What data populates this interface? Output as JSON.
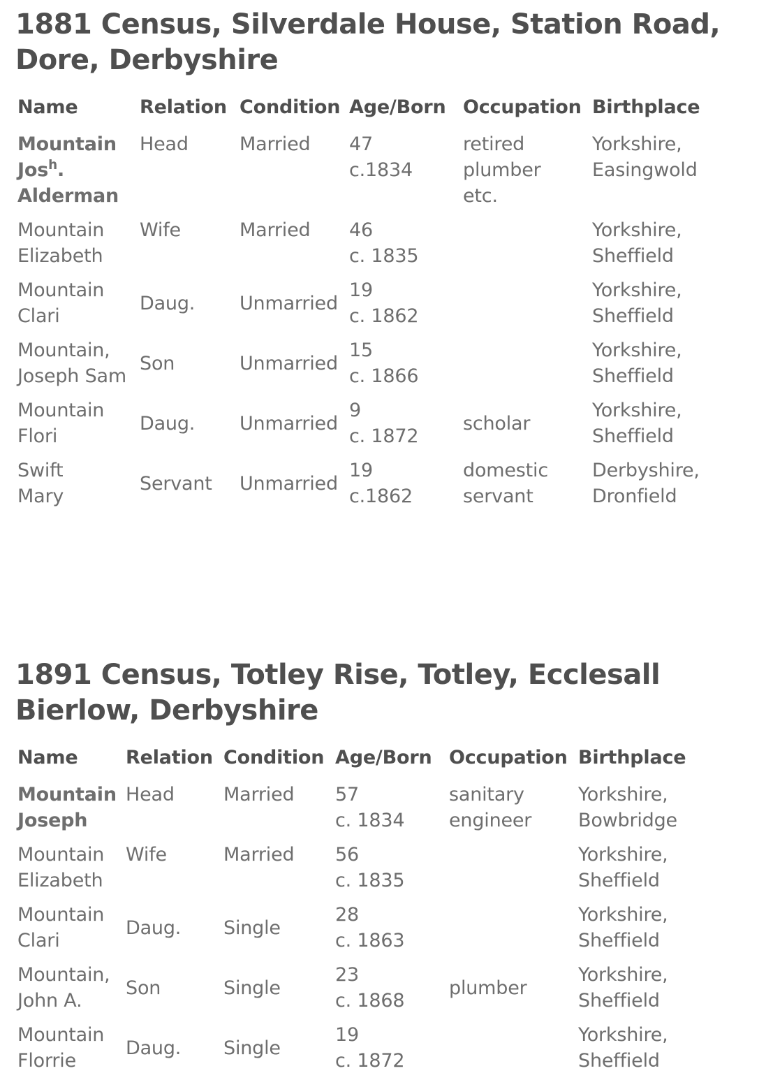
{
  "colors": {
    "background": "#ffffff",
    "title_text": "#4f4f4f",
    "header_text": "#4f4f4f",
    "body_text": "#6e6e6e",
    "bold_name_text": "#595959"
  },
  "census1881": {
    "title": "1881 Census, Silverdale House, Station Road,\nDore, Derbyshire",
    "columns": {
      "name": "Name",
      "relation": "Relation",
      "condition": "Condition",
      "age_born": "Age/Born",
      "occupation": "Occupation",
      "birthplace": "Birthplace"
    },
    "rows": [
      {
        "name_l1": "Mountain",
        "name_l2_base": "Jos",
        "name_l2_sup": "h",
        "name_l2_tail": ".",
        "name_l3": "Alderman",
        "relation": "Head",
        "condition": "Married",
        "age_born": "47\nc.1834",
        "occupation": "retired\nplumber\netc.",
        "birthplace": "Yorkshire,\nEasingwold"
      },
      {
        "name": "Mountain\nElizabeth",
        "relation": "Wife",
        "condition": "Married",
        "age_born": "46\nc. 1835",
        "occupation": "",
        "birthplace": "Yorkshire,\nSheffield"
      },
      {
        "name": "Mountain\nClari",
        "relation": "Daug.",
        "condition": "Unmarried",
        "age_born": "19\nc. 1862",
        "occupation": "",
        "birthplace": "Yorkshire,\nSheffield"
      },
      {
        "name": "Mountain,\nJoseph Sam",
        "relation": "Son",
        "condition": "Unmarried",
        "age_born": "15\nc. 1866",
        "occupation": "",
        "birthplace": "Yorkshire,\nSheffield"
      },
      {
        "name": "Mountain\nFlori",
        "relation": "Daug.",
        "condition": "Unmarried",
        "age_born": "9\nc. 1872",
        "occupation": "scholar",
        "birthplace": "Yorkshire,\nSheffield"
      },
      {
        "name": "Swift\nMary",
        "relation": "Servant",
        "condition": "Unmarried",
        "age_born": "19\nc.1862",
        "occupation": "domestic\nservant",
        "birthplace": "Derbyshire,\nDronfield"
      }
    ]
  },
  "census1891": {
    "title": "1891 Census, Totley Rise, Totley, Ecclesall\nBierlow, Derbyshire",
    "columns": {
      "name": "Name",
      "relation": "Relation",
      "condition": "Condition",
      "age_born": "Age/Born",
      "occupation": "Occupation",
      "birthplace": "Birthplace"
    },
    "rows": [
      {
        "name": "Mountain\nJoseph",
        "relation": "Head",
        "condition": "Married",
        "age_born": "57\nc. 1834",
        "occupation": "sanitary\nengineer",
        "birthplace": "Yorkshire,\nBowbridge"
      },
      {
        "name": "Mountain\nElizabeth",
        "relation": "Wife",
        "condition": "Married",
        "age_born": "56\nc. 1835",
        "occupation": "",
        "birthplace": "Yorkshire,\nSheffield"
      },
      {
        "name": "Mountain\nClari",
        "relation": "Daug.",
        "condition": "Single",
        "age_born": "28\nc. 1863",
        "occupation": "",
        "birthplace": "Yorkshire,\nSheffield"
      },
      {
        "name": "Mountain,\nJohn A.",
        "relation": "Son",
        "condition": "Single",
        "age_born": "23\nc. 1868",
        "occupation": "plumber",
        "birthplace": "Yorkshire,\nSheffield"
      },
      {
        "name": "Mountain\nFlorrie",
        "relation": "Daug.",
        "condition": "Single",
        "age_born": "19\nc. 1872",
        "occupation": "",
        "birthplace": "Yorkshire,\nSheffield"
      }
    ]
  }
}
